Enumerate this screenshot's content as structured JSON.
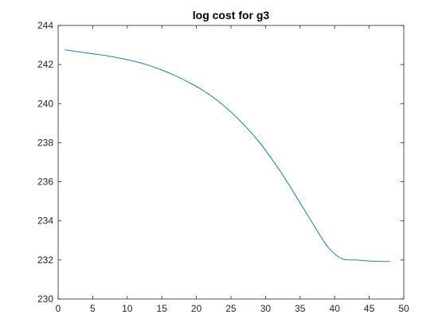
{
  "chart_data": {
    "type": "line",
    "title": "log cost for g3",
    "xlabel": "",
    "ylabel": "",
    "xlim": [
      0,
      50
    ],
    "ylim": [
      230,
      244
    ],
    "xticks": [
      0,
      5,
      10,
      15,
      20,
      25,
      30,
      35,
      40,
      45,
      50
    ],
    "yticks": [
      230,
      232,
      234,
      236,
      238,
      240,
      242,
      244
    ],
    "grid": false,
    "legend": "none",
    "colors": {
      "line": "#0072BD",
      "axis": "#262626",
      "background": "#ffffff"
    },
    "series": [
      {
        "x": [
          1,
          3,
          5,
          7,
          9,
          11,
          13,
          15,
          17,
          19,
          21,
          23,
          25,
          27,
          29,
          31,
          33,
          35,
          37,
          39,
          41,
          43,
          44,
          45,
          46,
          47,
          48
        ],
        "y": [
          242.75,
          242.65,
          242.55,
          242.45,
          242.32,
          242.17,
          241.97,
          241.72,
          241.42,
          241.07,
          240.67,
          240.17,
          239.57,
          238.87,
          238.07,
          237.12,
          236.07,
          234.92,
          233.77,
          232.67,
          232.07,
          232.0,
          231.97,
          231.95,
          231.93,
          231.92,
          231.92
        ]
      }
    ]
  }
}
